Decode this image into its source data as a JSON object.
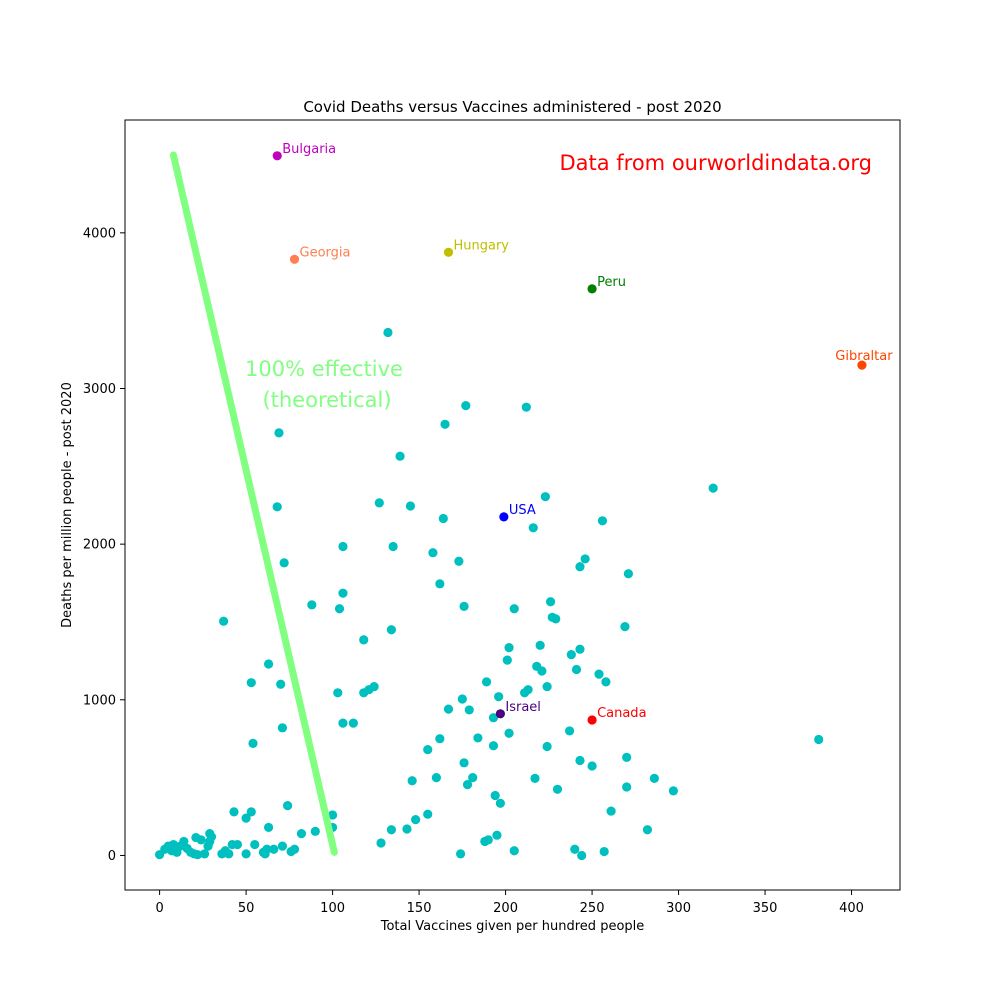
{
  "chart_data": {
    "type": "scatter",
    "title": "Covid Deaths versus Vaccines administered - post 2020",
    "xlabel": "Total Vaccines given per hundred people",
    "ylabel": "Deaths per million people - post 2020",
    "xlim": [
      -20,
      428
    ],
    "ylim": [
      -222,
      4725
    ],
    "xticks": [
      0,
      50,
      100,
      150,
      200,
      250,
      300,
      350,
      400
    ],
    "yticks": [
      0,
      1000,
      2000,
      3000,
      4000
    ],
    "grid": false,
    "default_point_color": "#00bfbf",
    "annotations": {
      "source_note": {
        "text": "Data from ourworldindata.org",
        "color": "#ff0000"
      },
      "effective_label": {
        "lines": [
          "100% effective",
          "(theoretical)"
        ],
        "color": "#80ff80"
      }
    },
    "reference_line": {
      "name": "100% effective (theoretical)",
      "color": "#80ff80",
      "x": [
        8,
        101
      ],
      "y": [
        4500,
        20
      ]
    },
    "labeled_points": [
      {
        "label": "Bulgaria",
        "x": 68,
        "y": 4495,
        "color": "#bf00bf"
      },
      {
        "label": "Georgia",
        "x": 78,
        "y": 3830,
        "color": "#ff7f50"
      },
      {
        "label": "Hungary",
        "x": 167,
        "y": 3875,
        "color": "#bfbf00"
      },
      {
        "label": "Peru",
        "x": 250,
        "y": 3640,
        "color": "#008000"
      },
      {
        "label": "Gibraltar",
        "x": 406,
        "y": 3150,
        "color": "#ff4500"
      },
      {
        "label": "USA",
        "x": 199,
        "y": 2175,
        "color": "#0000ff"
      },
      {
        "label": "Israel",
        "x": 197,
        "y": 910,
        "color": "#4b0082"
      },
      {
        "label": "Canada",
        "x": 250,
        "y": 870,
        "color": "#ff0000"
      }
    ],
    "points": [
      [
        0,
        5
      ],
      [
        3,
        40
      ],
      [
        5,
        60
      ],
      [
        7,
        30
      ],
      [
        8,
        70
      ],
      [
        10,
        20
      ],
      [
        12,
        60
      ],
      [
        14,
        90
      ],
      [
        16,
        45
      ],
      [
        18,
        20
      ],
      [
        20,
        10
      ],
      [
        21,
        115
      ],
      [
        22,
        5
      ],
      [
        24,
        100
      ],
      [
        26,
        10
      ],
      [
        28,
        60
      ],
      [
        29,
        140
      ],
      [
        29,
        90
      ],
      [
        30,
        120
      ],
      [
        36,
        10
      ],
      [
        38,
        30
      ],
      [
        40,
        10
      ],
      [
        42,
        70
      ],
      [
        43,
        280
      ],
      [
        45,
        70
      ],
      [
        37,
        1505
      ],
      [
        50,
        240
      ],
      [
        50,
        10
      ],
      [
        53,
        1110
      ],
      [
        53,
        280
      ],
      [
        54,
        720
      ],
      [
        55,
        70
      ],
      [
        60,
        20
      ],
      [
        61,
        10
      ],
      [
        62,
        40
      ],
      [
        63,
        1230
      ],
      [
        63,
        180
      ],
      [
        66,
        40
      ],
      [
        68,
        2240
      ],
      [
        69,
        2715
      ],
      [
        70,
        1100
      ],
      [
        71,
        60
      ],
      [
        71,
        820
      ],
      [
        72,
        1880
      ],
      [
        74,
        320
      ],
      [
        76,
        25
      ],
      [
        78,
        40
      ],
      [
        82,
        140
      ],
      [
        88,
        1610
      ],
      [
        90,
        155
      ],
      [
        100,
        260
      ],
      [
        100,
        180
      ],
      [
        103,
        1045
      ],
      [
        104,
        1585
      ],
      [
        106,
        850
      ],
      [
        106,
        1685
      ],
      [
        106,
        1985
      ],
      [
        112,
        850
      ],
      [
        118,
        1385
      ],
      [
        118,
        1045
      ],
      [
        121,
        1065
      ],
      [
        124,
        1085
      ],
      [
        127,
        2265
      ],
      [
        128,
        80
      ],
      [
        132,
        3360
      ],
      [
        134,
        1450
      ],
      [
        134,
        165
      ],
      [
        135,
        1985
      ],
      [
        139,
        2565
      ],
      [
        143,
        170
      ],
      [
        145,
        2245
      ],
      [
        146,
        480
      ],
      [
        148,
        230
      ],
      [
        155,
        680
      ],
      [
        155,
        265
      ],
      [
        158,
        1945
      ],
      [
        160,
        500
      ],
      [
        162,
        750
      ],
      [
        162,
        1745
      ],
      [
        164,
        2165
      ],
      [
        165,
        2770
      ],
      [
        167,
        940
      ],
      [
        173,
        1890
      ],
      [
        174,
        10
      ],
      [
        175,
        1005
      ],
      [
        176,
        1600
      ],
      [
        177,
        2890
      ],
      [
        176,
        595
      ],
      [
        178,
        455
      ],
      [
        179,
        935
      ],
      [
        181,
        500
      ],
      [
        184,
        755
      ],
      [
        188,
        90
      ],
      [
        189,
        1115
      ],
      [
        190,
        100
      ],
      [
        193,
        705
      ],
      [
        193,
        885
      ],
      [
        194,
        385
      ],
      [
        195,
        130
      ],
      [
        196,
        1020
      ],
      [
        197,
        335
      ],
      [
        201,
        1255
      ],
      [
        202,
        1335
      ],
      [
        202,
        785
      ],
      [
        205,
        1585
      ],
      [
        205,
        30
      ],
      [
        211,
        1045
      ],
      [
        212,
        2880
      ],
      [
        213,
        1065
      ],
      [
        216,
        2105
      ],
      [
        217,
        495
      ],
      [
        218,
        1215
      ],
      [
        220,
        1350
      ],
      [
        221,
        1185
      ],
      [
        223,
        2305
      ],
      [
        224,
        700
      ],
      [
        224,
        1085
      ],
      [
        226,
        1630
      ],
      [
        227,
        1530
      ],
      [
        229,
        1520
      ],
      [
        230,
        425
      ],
      [
        237,
        800
      ],
      [
        238,
        1290
      ],
      [
        240,
        40
      ],
      [
        241,
        1195
      ],
      [
        243,
        1855
      ],
      [
        243,
        1325
      ],
      [
        243,
        610
      ],
      [
        244,
        0
      ],
      [
        246,
        1905
      ],
      [
        250,
        575
      ],
      [
        254,
        1165
      ],
      [
        256,
        2150
      ],
      [
        257,
        25
      ],
      [
        258,
        1115
      ],
      [
        261,
        285
      ],
      [
        269,
        1470
      ],
      [
        270,
        440
      ],
      [
        270,
        630
      ],
      [
        271,
        1810
      ],
      [
        282,
        165
      ],
      [
        286,
        495
      ],
      [
        297,
        415
      ],
      [
        320,
        2360
      ],
      [
        381,
        745
      ]
    ]
  }
}
